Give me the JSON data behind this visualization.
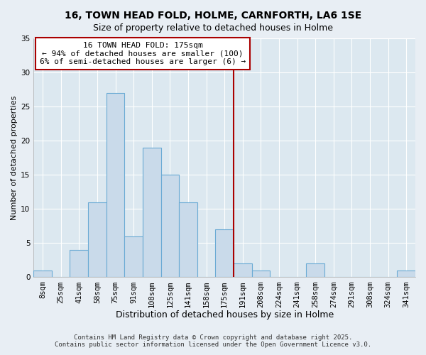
{
  "title": "16, TOWN HEAD FOLD, HOLME, CARNFORTH, LA6 1SE",
  "subtitle": "Size of property relative to detached houses in Holme",
  "xlabel": "Distribution of detached houses by size in Holme",
  "ylabel": "Number of detached properties",
  "categories": [
    "8sqm",
    "25sqm",
    "41sqm",
    "58sqm",
    "75sqm",
    "91sqm",
    "108sqm",
    "125sqm",
    "141sqm",
    "158sqm",
    "175sqm",
    "191sqm",
    "208sqm",
    "224sqm",
    "241sqm",
    "258sqm",
    "274sqm",
    "291sqm",
    "308sqm",
    "324sqm",
    "341sqm"
  ],
  "values": [
    1,
    0,
    4,
    11,
    27,
    6,
    19,
    15,
    11,
    0,
    7,
    2,
    1,
    0,
    0,
    2,
    0,
    0,
    0,
    0,
    1
  ],
  "bar_color": "#c9daea",
  "bar_edge_color": "#6aaad4",
  "vline_x_idx": 10,
  "vline_color": "#aa0000",
  "annotation_text": "16 TOWN HEAD FOLD: 175sqm\n← 94% of detached houses are smaller (100)\n6% of semi-detached houses are larger (6) →",
  "annotation_box_facecolor": "#ffffff",
  "annotation_box_edgecolor": "#aa0000",
  "ylim": [
    0,
    35
  ],
  "yticks": [
    0,
    5,
    10,
    15,
    20,
    25,
    30,
    35
  ],
  "footer_text": "Contains HM Land Registry data © Crown copyright and database right 2025.\nContains public sector information licensed under the Open Government Licence v3.0.",
  "bg_color": "#e8eef4",
  "plot_bg_color": "#dce8f0",
  "grid_color": "#ffffff",
  "title_fontsize": 10,
  "subtitle_fontsize": 9,
  "xlabel_fontsize": 9,
  "ylabel_fontsize": 8,
  "tick_fontsize": 7.5,
  "annotation_fontsize": 8,
  "footer_fontsize": 6.5
}
